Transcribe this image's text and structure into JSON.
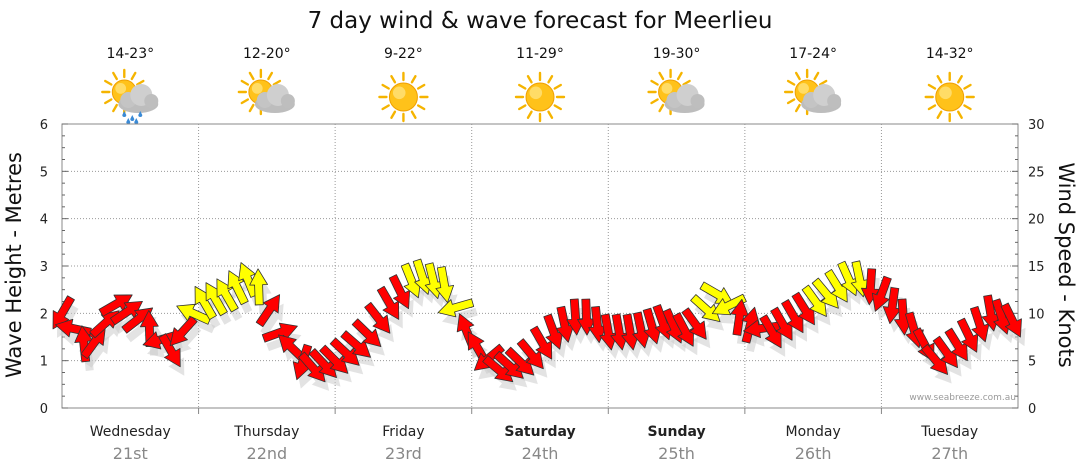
{
  "chart_data": {
    "type": "line",
    "title": "7 day wind & wave forecast for Meerlieu",
    "ylabel_left": "Wave Height - Metres",
    "ylabel_right": "Wind Speed - Knots",
    "ylim_left": [
      0,
      6
    ],
    "ylim_right": [
      0,
      30
    ],
    "yticks_left": [
      0,
      1,
      2,
      3,
      4,
      5,
      6
    ],
    "yticks_right": [
      0,
      5,
      10,
      15,
      20,
      25,
      30
    ],
    "days": [
      {
        "day": "Wednesday",
        "date": "21st",
        "bold": false,
        "temp": "14-23°",
        "weather": "showers"
      },
      {
        "day": "Thursday",
        "date": "22nd",
        "bold": false,
        "temp": "12-20°",
        "weather": "partly-cloudy"
      },
      {
        "day": "Friday",
        "date": "23rd",
        "bold": false,
        "temp": "9-22°",
        "weather": "sunny"
      },
      {
        "day": "Saturday",
        "date": "24th",
        "bold": true,
        "temp": "11-29°",
        "weather": "sunny"
      },
      {
        "day": "Sunday",
        "date": "25th",
        "bold": true,
        "temp": "19-30°",
        "weather": "partly-cloudy"
      },
      {
        "day": "Monday",
        "date": "26th",
        "bold": false,
        "temp": "17-24°",
        "weather": "partly-cloudy"
      },
      {
        "day": "Tuesday",
        "date": "27th",
        "bold": false,
        "temp": "14-32°",
        "weather": "sunny"
      }
    ],
    "wind_series": {
      "units": "knots",
      "x_days": [
        0.0,
        0.2,
        0.4,
        0.6,
        0.8,
        1.0,
        1.2,
        1.4,
        1.6,
        1.8,
        2.0,
        2.2,
        2.4,
        2.6,
        2.8,
        3.0,
        3.2,
        3.4,
        3.6,
        3.8,
        4.0,
        4.2,
        4.4,
        4.6,
        4.8,
        5.0,
        5.2,
        5.4,
        5.6,
        5.8,
        6.0,
        6.2,
        6.4,
        6.6,
        6.8,
        7.0
      ],
      "speed": [
        10,
        6,
        11,
        9,
        6,
        11,
        12,
        14,
        8,
        4,
        5,
        7,
        11,
        14,
        13,
        7,
        4,
        5,
        8,
        10,
        8,
        8,
        9,
        8,
        12,
        9,
        8,
        10,
        12,
        14,
        12,
        9,
        5,
        7,
        10,
        9
      ],
      "direction_deg": [
        120,
        300,
        330,
        320,
        60,
        240,
        240,
        250,
        340,
        50,
        45,
        40,
        60,
        70,
        80,
        290,
        40,
        45,
        70,
        90,
        80,
        80,
        70,
        60,
        30,
        340,
        60,
        60,
        50,
        70,
        110,
        80,
        50,
        60,
        80,
        60
      ],
      "color": [
        "red",
        "red",
        "red",
        "red",
        "red",
        "yellow",
        "yellow",
        "yellow",
        "red",
        "red",
        "red",
        "red",
        "red",
        "yellow",
        "yellow",
        "red",
        "red",
        "red",
        "red",
        "red",
        "red",
        "red",
        "red",
        "red",
        "yellow",
        "red",
        "red",
        "red",
        "yellow",
        "yellow",
        "red",
        "red",
        "red",
        "red",
        "red",
        "red"
      ]
    },
    "colors": {
      "wind_light": "#ffff00",
      "wind_strong": "#ff0000",
      "grid": "#999999",
      "shadow": "#cccccc"
    },
    "watermark": "www.seabreeze.com.au"
  }
}
